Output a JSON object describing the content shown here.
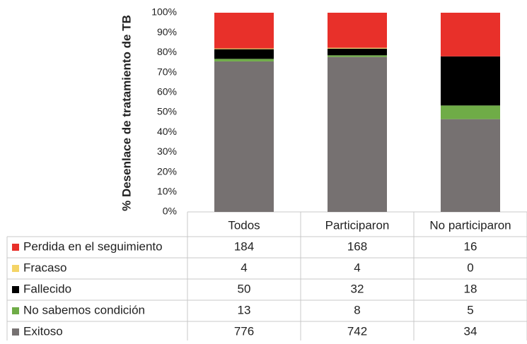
{
  "chart_data": {
    "type": "bar",
    "stacking": "percent",
    "y_axis_label": "% Desenlace de tratamiento de TB",
    "categories": [
      "Todos",
      "Participaron",
      "No participaron"
    ],
    "series": [
      {
        "name": "Perdida en el seguimiento",
        "color": "#e8302a",
        "values": [
          184,
          168,
          16
        ]
      },
      {
        "name": "Fracaso",
        "color": "#f4d466",
        "values": [
          4,
          4,
          0
        ]
      },
      {
        "name": "Fallecido",
        "color": "#000000",
        "values": [
          50,
          32,
          18
        ]
      },
      {
        "name": "No sabemos condición",
        "color": "#6fac47",
        "values": [
          13,
          8,
          5
        ]
      },
      {
        "name": "Exitoso",
        "color": "#767171",
        "values": [
          776,
          742,
          34
        ]
      }
    ],
    "ylim": [
      0,
      100
    ],
    "yticks": [
      {
        "value": 0,
        "label": "0%"
      },
      {
        "value": 10,
        "label": "10%"
      },
      {
        "value": 20,
        "label": "20%"
      },
      {
        "value": 30,
        "label": "30%"
      },
      {
        "value": 40,
        "label": "40%"
      },
      {
        "value": 50,
        "label": "50%"
      },
      {
        "value": 60,
        "label": "60%"
      },
      {
        "value": 70,
        "label": "70%"
      },
      {
        "value": 80,
        "label": "80%"
      },
      {
        "value": 90,
        "label": "90%"
      },
      {
        "value": 100,
        "label": "100%"
      }
    ]
  }
}
